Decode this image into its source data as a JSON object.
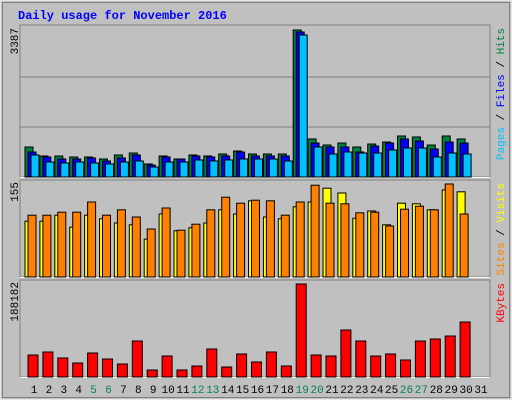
{
  "chart_data": [
    {
      "type": "bar",
      "title": "Daily usage for November 2016",
      "ylim": [
        0,
        3387
      ],
      "yticks": [
        3387
      ],
      "legend_separator": " / ",
      "series": [
        {
          "name": "Pages",
          "color": "#00c0ff",
          "values": [
            507,
            346,
            323,
            346,
            323,
            300,
            346,
            369,
            230,
            346,
            346,
            392,
            369,
            392,
            415,
            415,
            415,
            369,
            3272,
            691,
            530,
            576,
            553,
            553,
            622,
            668,
            668,
            461,
            553,
            530,
            null
          ]
        },
        {
          "name": "Files",
          "color": "#0000ff",
          "values": [
            576,
            461,
            415,
            415,
            438,
            369,
            438,
            507,
            276,
            461,
            415,
            484,
            461,
            484,
            576,
            484,
            484,
            484,
            3341,
            783,
            691,
            691,
            576,
            714,
            783,
            876,
            829,
            645,
            806,
            783,
            null
          ]
        },
        {
          "name": "Hits",
          "color": "#008040",
          "values": [
            691,
            484,
            484,
            461,
            461,
            415,
            507,
            553,
            300,
            484,
            415,
            507,
            484,
            530,
            599,
            530,
            530,
            530,
            3387,
            876,
            737,
            783,
            691,
            760,
            806,
            945,
            922,
            737,
            945,
            876,
            null
          ]
        }
      ]
    },
    {
      "type": "bar",
      "ylim": [
        0,
        155
      ],
      "yticks": [
        155
      ],
      "legend_separator": " / ",
      "series": [
        {
          "name": "Sites",
          "color": "#ff8000",
          "values": [
            103,
            103,
            108,
            108,
            125,
            103,
            112,
            100,
            80,
            115,
            78,
            88,
            112,
            133,
            123,
            128,
            127,
            103,
            125,
            153,
            123,
            122,
            107,
            108,
            85,
            113,
            118,
            112,
            155,
            105,
            null
          ]
        },
        {
          "name": "Visits",
          "color": "#ffff00",
          "values": [
            93,
            93,
            103,
            83,
            103,
            97,
            90,
            87,
            63,
            105,
            77,
            82,
            90,
            112,
            105,
            127,
            100,
            97,
            117,
            125,
            148,
            140,
            98,
            110,
            87,
            123,
            122,
            112,
            145,
            142,
            null
          ]
        }
      ]
    },
    {
      "type": "bar",
      "ylim": [
        0,
        188182
      ],
      "yticks": [
        188182
      ],
      "categories": [
        "1",
        "2",
        "3",
        "4",
        "5",
        "6",
        "7",
        "8",
        "9",
        "10",
        "11",
        "12",
        "13",
        "14",
        "15",
        "16",
        "17",
        "18",
        "19",
        "20",
        "21",
        "22",
        "23",
        "24",
        "25",
        "26",
        "27",
        "28",
        "29",
        "30",
        "31"
      ],
      "category_colors": [
        "#000000",
        "#000000",
        "#000000",
        "#000000",
        "#00805c",
        "#00805c",
        "#000000",
        "#000000",
        "#000000",
        "#000000",
        "#000000",
        "#00805c",
        "#00805c",
        "#000000",
        "#000000",
        "#000000",
        "#000000",
        "#000000",
        "#00805c",
        "#00805c",
        "#000000",
        "#000000",
        "#000000",
        "#000000",
        "#000000",
        "#00805c",
        "#00805c",
        "#000000",
        "#000000",
        "#000000",
        "#000000"
      ],
      "series": [
        {
          "name": "KBytes",
          "color": "#ff0000",
          "values": [
            44506,
            50575,
            38437,
            28322,
            48552,
            36414,
            26299,
            72828,
            14161,
            42483,
            14161,
            22253,
            56644,
            20230,
            46529,
            30345,
            50575,
            22253,
            188182,
            44506,
            42483,
            95081,
            72828,
            42483,
            46529,
            34391,
            72828,
            76874,
            82943,
            111265,
            null
          ]
        }
      ]
    }
  ]
}
